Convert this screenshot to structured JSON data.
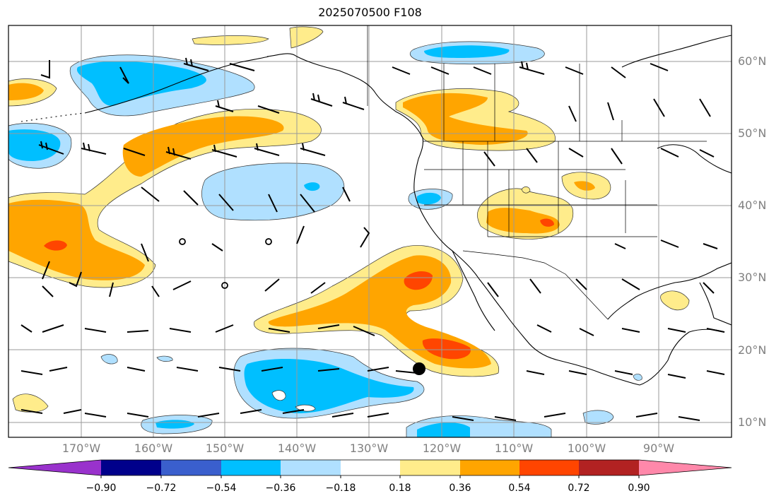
{
  "title": "2025070500 F108",
  "lat_labels": [
    "60°N",
    "50°N",
    "40°N",
    "30°N",
    "20°N",
    "10°N"
  ],
  "lon_labels": [
    "170°W",
    "160°W",
    "150°W",
    "140°W",
    "130°W",
    "120°W",
    "110°W",
    "100°W",
    "90°W"
  ],
  "colorbar": {
    "tick_labels": [
      "−0.90",
      "−0.72",
      "−0.54",
      "−0.36",
      "−0.18",
      "0.18",
      "0.36",
      "0.54",
      "0.72",
      "0.90"
    ],
    "colors": [
      "#9932cc",
      "#00008b",
      "#3a5fcd",
      "#00bfff",
      "#b0e0ff",
      "#ffffff",
      "#ffec8b",
      "#ffa500",
      "#ff4500",
      "#b22222",
      "#ff88aa"
    ]
  },
  "field_colors": {
    "neg_strong": "#00bfff",
    "neg_weak": "#b0e0ff",
    "pos_weak": "#ffec8b",
    "pos_mid": "#ffa500",
    "pos_strong": "#ff4500"
  },
  "marker_color": "#000000"
}
